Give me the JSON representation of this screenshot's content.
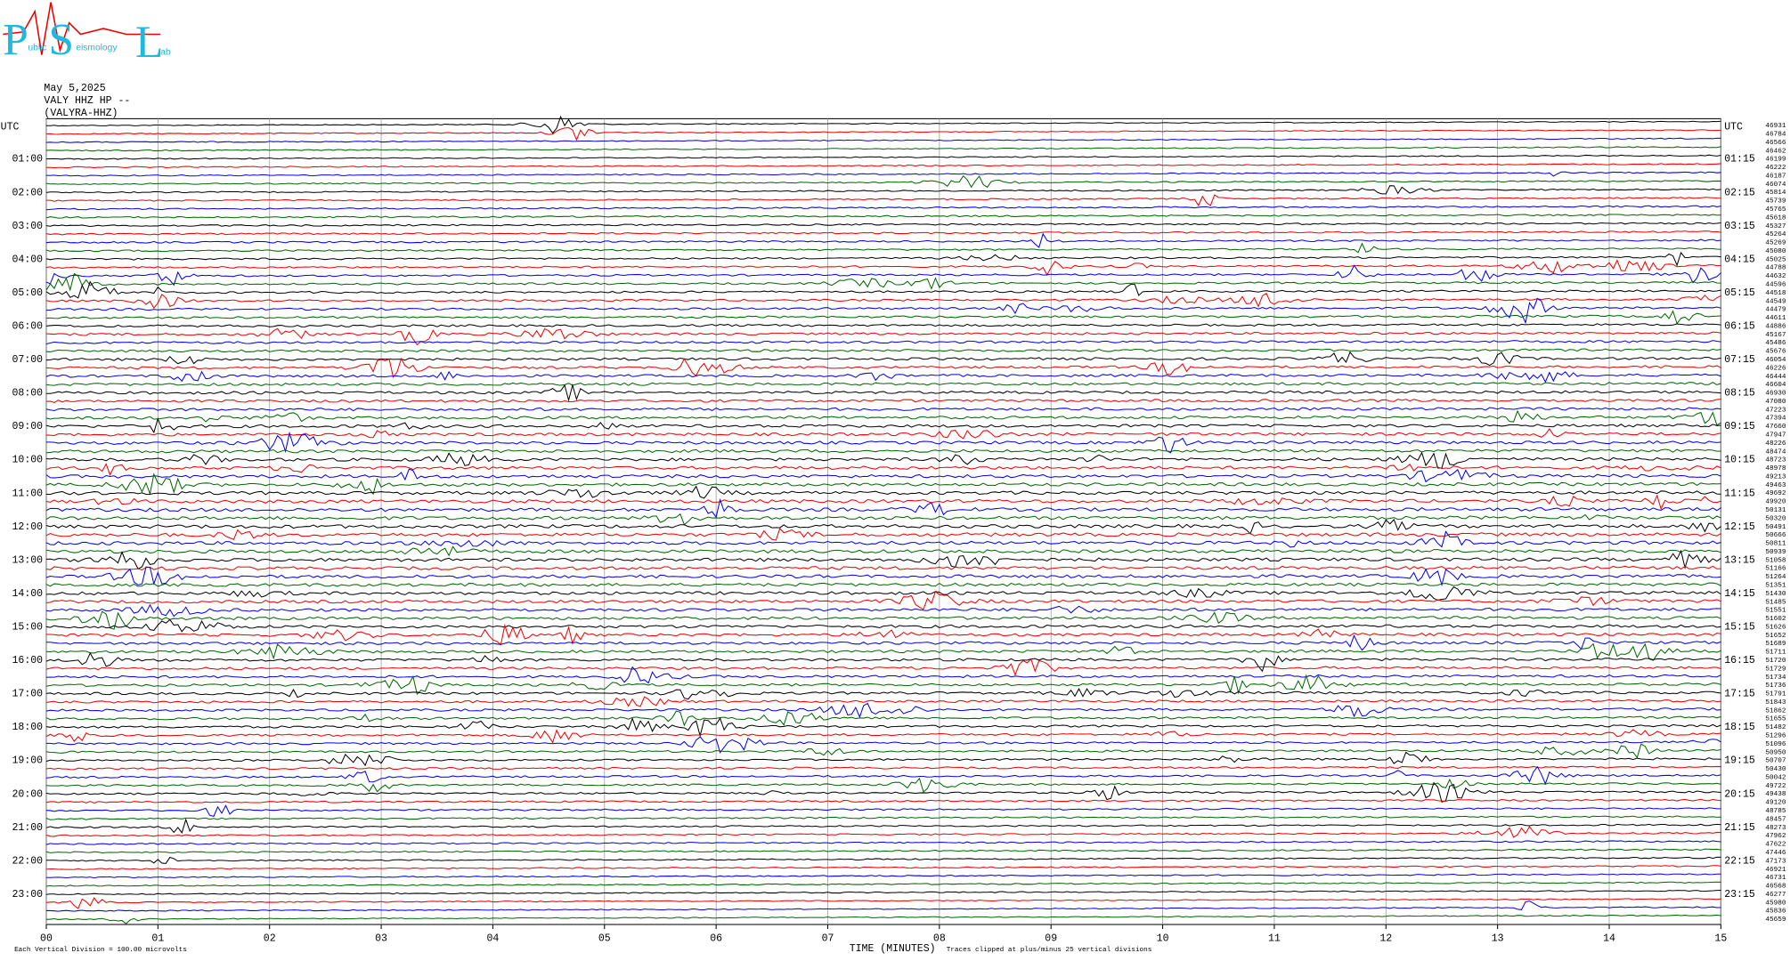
{
  "logo": {
    "letters": [
      "P",
      "S",
      "L"
    ],
    "words": [
      "ublic",
      "eismology",
      "ab"
    ]
  },
  "header": {
    "date": "May 5,2025",
    "station": "VALY HHZ HP --",
    "location": "(VALYRA-HHZ)"
  },
  "left_labels": [
    "UTC",
    "01:00",
    "02:00",
    "03:00",
    "04:00",
    "05:00",
    "06:00",
    "07:00",
    "08:00",
    "09:00",
    "10:00",
    "11:00",
    "12:00",
    "13:00",
    "14:00",
    "15:00",
    "16:00",
    "17:00",
    "18:00",
    "19:00",
    "20:00",
    "21:00",
    "22:00",
    "23:00"
  ],
  "right_labels": [
    "UTC",
    "01:15",
    "02:15",
    "03:15",
    "04:15",
    "05:15",
    "06:15",
    "07:15",
    "08:15",
    "09:15",
    "10:15",
    "11:15",
    "12:15",
    "13:15",
    "14:15",
    "15:15",
    "16:15",
    "17:15",
    "18:15",
    "19:15",
    "20:15",
    "21:15",
    "22:15",
    "23:15"
  ],
  "trace_counts": [
    46931,
    46784,
    46566,
    46462,
    46199,
    46222,
    46187,
    46074,
    45814,
    45739,
    45765,
    45618,
    45327,
    45264,
    45269,
    45080,
    45025,
    44788,
    44632,
    44596,
    44518,
    44549,
    44479,
    44611,
    44886,
    45167,
    45486,
    45676,
    46054,
    46226,
    46444,
    46604,
    46930,
    47080,
    47223,
    47394,
    47660,
    47947,
    48226,
    48474,
    48723,
    48978,
    49213,
    49463,
    49692,
    49920,
    50131,
    50320,
    50491,
    50666,
    50811,
    50939,
    51058,
    51166,
    51264,
    51351,
    51430,
    51485,
    51551,
    51602,
    51626,
    51652,
    51689,
    51711,
    51720,
    51729,
    51734,
    51736,
    51791,
    51843,
    51862,
    51655,
    51482,
    51296,
    51096,
    50950,
    50707,
    50430,
    50042,
    49722,
    49438,
    49120,
    48785,
    48457,
    48273,
    47962,
    47622,
    47446,
    47173,
    46921,
    46731,
    46568,
    46277,
    45980,
    45836,
    45659
  ],
  "x_ticks": [
    "00",
    "01",
    "02",
    "03",
    "04",
    "05",
    "06",
    "07",
    "08",
    "09",
    "10",
    "11",
    "12",
    "13",
    "14",
    "15"
  ],
  "footer": {
    "scale": "Each Vertical Division =  100.00 microvolts",
    "axis_title": "TIME (MINUTES)",
    "note": "Traces clipped at plus/minus 25 vertical divisions"
  }
}
